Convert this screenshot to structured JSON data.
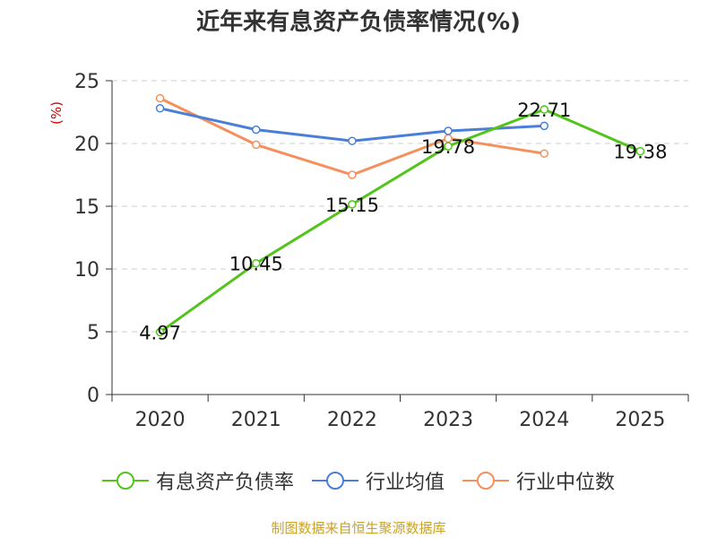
{
  "chart_data": {
    "type": "line",
    "title": "近年来有息资产负债率情况(%)",
    "ylabel": "(%)",
    "xlabel": "",
    "categories": [
      "2020",
      "2021",
      "2022",
      "2023",
      "2024",
      "2025"
    ],
    "ylim": [
      0,
      25
    ],
    "yticks": [
      0,
      5,
      10,
      15,
      20,
      25
    ],
    "grid": true,
    "legend_position": "bottom",
    "series": [
      {
        "name": "有息资产负债率",
        "color": "#52c41a",
        "values": [
          4.97,
          10.45,
          15.15,
          19.78,
          22.71,
          19.38
        ],
        "labels": [
          "4.97",
          "10.45",
          "15.15",
          "19.78",
          "22.71",
          "19.38"
        ]
      },
      {
        "name": "行业均值",
        "color": "#4a7fd8",
        "values": [
          22.8,
          21.1,
          20.2,
          21.0,
          21.4,
          null
        ]
      },
      {
        "name": "行业中位数",
        "color": "#f5905d",
        "values": [
          23.6,
          19.9,
          17.5,
          20.4,
          19.2,
          null
        ]
      }
    ]
  },
  "source_note": "制图数据来自恒生聚源数据库"
}
